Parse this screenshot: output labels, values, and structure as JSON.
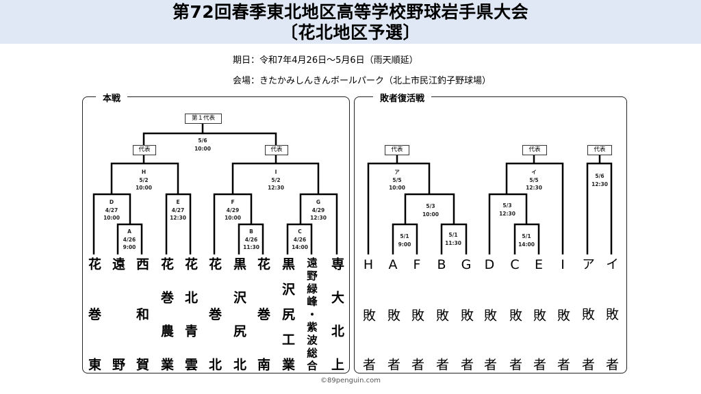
{
  "header": {
    "title_line1": "第72回春季東北地区高等学校野球岩手県大会",
    "title_line2": "〔花北地区予選〕",
    "dates": "期日：令和7年4月26日～5月6日（雨天順延）",
    "venue": "会場：きたかみしんきんボールパーク（北上市民江釣子野球場）"
  },
  "main": {
    "label": "本戦",
    "final_box": "第１代表",
    "rep_box": "代表",
    "games": {
      "final": [
        "5/6",
        "10:00"
      ],
      "H": [
        "H",
        "5/2",
        "10:00"
      ],
      "I": [
        "I",
        "5/2",
        "12:30"
      ],
      "D": [
        "D",
        "4/27",
        "10:00"
      ],
      "A": [
        "A",
        "4/26",
        "9:00"
      ],
      "E": [
        "E",
        "4/27",
        "12:30"
      ],
      "F": [
        "F",
        "4/29",
        "10:00"
      ],
      "B": [
        "B",
        "4/26",
        "11:30"
      ],
      "G": [
        "G",
        "4/29",
        "12:30"
      ],
      "C": [
        "C",
        "4/26",
        "14:00"
      ]
    },
    "teams": [
      "花巻東",
      "遠野",
      "西和賀",
      "花巻農業",
      "花北青雲",
      "花巻北",
      "黒沢尻北",
      "花巻南",
      "黒沢尻工業",
      "遠野緑峰・紫波総合",
      "専大北上"
    ]
  },
  "repechage": {
    "label": "敗者復活戦",
    "rep_box": "代表",
    "games": {
      "a": [
        "ア",
        "5/5",
        "10:00"
      ],
      "a_semi": [
        "5/3",
        "10:00"
      ],
      "a_r1": [
        "5/1",
        "9:00"
      ],
      "a_r2": [
        "5/1",
        "11:30"
      ],
      "i": [
        "イ",
        "5/5",
        "12:30"
      ],
      "i_semi": [
        "5/3",
        "12:30"
      ],
      "i_r1": [
        "5/1",
        "14:00"
      ],
      "solo": [
        "5/6",
        "12:30"
      ]
    },
    "teams": [
      "H敗者",
      "A敗者",
      "F敗者",
      "B敗者",
      "G敗者",
      "D敗者",
      "C敗者",
      "E敗者",
      "I敗者",
      "ア敗者",
      "イ敗者"
    ]
  },
  "copyright": "©89penguin.com"
}
